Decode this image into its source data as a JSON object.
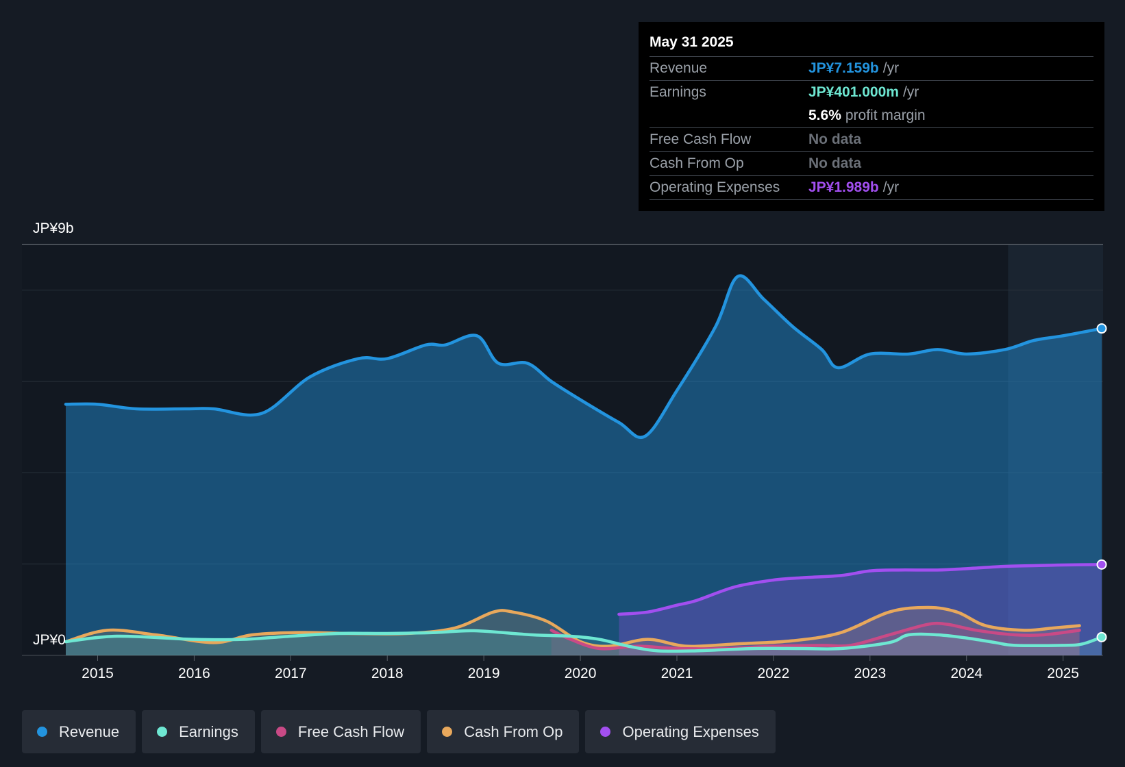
{
  "tooltip": {
    "date": "May 31 2025",
    "rows": [
      {
        "label": "Revenue",
        "value": "JP¥7.159b",
        "unit": "/yr",
        "color": "#2394df"
      },
      {
        "label": "Earnings",
        "value": "JP¥401.000m",
        "unit": "/yr",
        "color": "#6ee7d2"
      },
      {
        "label": "",
        "value": "5.6%",
        "unit": "profit margin",
        "color": "#ffffff"
      },
      {
        "label": "Free Cash Flow",
        "value": "No data",
        "unit": "",
        "color": "#6b7078"
      },
      {
        "label": "Cash From Op",
        "value": "No data",
        "unit": "",
        "color": "#6b7078"
      },
      {
        "label": "Operating Expenses",
        "value": "JP¥1.989b",
        "unit": "/yr",
        "color": "#a24ff0"
      }
    ]
  },
  "legend": [
    {
      "label": "Revenue",
      "color": "#2394df"
    },
    {
      "label": "Earnings",
      "color": "#6ee7d2"
    },
    {
      "label": "Free Cash Flow",
      "color": "#c94a86"
    },
    {
      "label": "Cash From Op",
      "color": "#e8a85c"
    },
    {
      "label": "Operating Expenses",
      "color": "#a24ff0"
    }
  ],
  "chart_data": {
    "type": "area",
    "y_top_label": "JP¥9b",
    "y_bottom_label": "JP¥0",
    "ylim": [
      0,
      9
    ],
    "unit": "JP¥ billions",
    "x_ticks": [
      "2015",
      "2016",
      "2017",
      "2018",
      "2019",
      "2020",
      "2021",
      "2022",
      "2023",
      "2024",
      "2025"
    ],
    "xlim": [
      2014.33,
      2025.55
    ],
    "forecast_start": 2024.43,
    "series": [
      {
        "name": "Revenue",
        "color": "#2394df",
        "x": [
          2014.67,
          2015.0,
          2015.4,
          2015.9,
          2016.2,
          2016.7,
          2017.2,
          2017.7,
          2018.0,
          2018.4,
          2018.6,
          2018.93,
          2019.15,
          2019.45,
          2019.7,
          2020.0,
          2020.4,
          2020.67,
          2021.0,
          2021.4,
          2021.63,
          2021.9,
          2022.2,
          2022.5,
          2022.67,
          2023.0,
          2023.4,
          2023.7,
          2024.0,
          2024.4,
          2024.7,
          2025.0,
          2025.4
        ],
        "values": [
          5.5,
          5.5,
          5.4,
          5.4,
          5.4,
          5.3,
          6.1,
          6.5,
          6.5,
          6.8,
          6.8,
          7.0,
          6.4,
          6.4,
          6.0,
          5.6,
          5.1,
          4.8,
          5.8,
          7.2,
          8.3,
          7.8,
          7.2,
          6.7,
          6.3,
          6.6,
          6.6,
          6.7,
          6.6,
          6.7,
          6.9,
          7.0,
          7.16
        ]
      },
      {
        "name": "Earnings",
        "color": "#6ee7d2",
        "x": [
          2014.67,
          2015.2,
          2016.0,
          2016.5,
          2017.0,
          2017.5,
          2018.0,
          2018.5,
          2018.9,
          2019.5,
          2019.9,
          2020.2,
          2020.5,
          2020.8,
          2021.2,
          2021.8,
          2022.3,
          2022.7,
          2023.2,
          2023.4,
          2023.7,
          2024.0,
          2024.3,
          2024.5,
          2025.0,
          2025.2,
          2025.4
        ],
        "values": [
          0.3,
          0.42,
          0.35,
          0.35,
          0.42,
          0.48,
          0.48,
          0.5,
          0.54,
          0.45,
          0.42,
          0.35,
          0.2,
          0.1,
          0.1,
          0.15,
          0.15,
          0.15,
          0.28,
          0.45,
          0.45,
          0.38,
          0.28,
          0.22,
          0.22,
          0.25,
          0.4
        ]
      },
      {
        "name": "Free Cash Flow",
        "color": "#c94a86",
        "x": [
          2019.7,
          2019.9,
          2020.2,
          2020.6,
          2021.0,
          2021.5,
          2022.0,
          2022.5,
          2022.8,
          2023.2,
          2023.6,
          2023.8,
          2024.1,
          2024.5,
          2024.8,
          2025.17
        ],
        "values": [
          0.55,
          0.35,
          0.15,
          0.2,
          0.15,
          0.15,
          0.2,
          0.22,
          0.22,
          0.45,
          0.68,
          0.68,
          0.55,
          0.45,
          0.45,
          0.55
        ]
      },
      {
        "name": "Cash From Op",
        "color": "#e8a85c",
        "x": [
          2014.67,
          2015.1,
          2015.6,
          2016.2,
          2016.6,
          2017.1,
          2017.6,
          2018.2,
          2018.7,
          2019.1,
          2019.3,
          2019.65,
          2020.0,
          2020.3,
          2020.7,
          2021.1,
          2021.6,
          2022.2,
          2022.7,
          2023.2,
          2023.6,
          2023.9,
          2024.2,
          2024.6,
          2024.9,
          2025.17
        ],
        "values": [
          0.3,
          0.55,
          0.45,
          0.28,
          0.45,
          0.5,
          0.48,
          0.48,
          0.6,
          0.95,
          0.95,
          0.75,
          0.3,
          0.2,
          0.35,
          0.2,
          0.25,
          0.32,
          0.5,
          0.95,
          1.05,
          0.95,
          0.65,
          0.55,
          0.6,
          0.65
        ]
      },
      {
        "name": "Operating Expenses",
        "color": "#a24ff0",
        "x": [
          2020.4,
          2020.7,
          2021.0,
          2021.2,
          2021.6,
          2022.0,
          2022.3,
          2022.7,
          2023.0,
          2023.3,
          2023.7,
          2024.0,
          2024.4,
          2024.8,
          2025.0,
          2025.4
        ],
        "values": [
          0.9,
          0.95,
          1.1,
          1.2,
          1.5,
          1.65,
          1.7,
          1.75,
          1.85,
          1.87,
          1.87,
          1.9,
          1.95,
          1.97,
          1.98,
          1.99
        ]
      }
    ]
  }
}
